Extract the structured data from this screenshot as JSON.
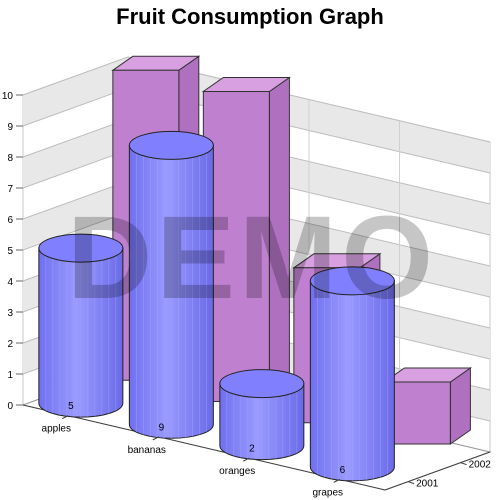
{
  "chart_data": {
    "type": "bar",
    "title": "Fruit Consumption Graph",
    "categories": [
      "apples",
      "bananas",
      "oranges",
      "grapes"
    ],
    "series": [
      {
        "name": "2001",
        "values": [
          5,
          9,
          2,
          6
        ],
        "shape": "cylinder",
        "color": "#8080ff"
      },
      {
        "name": "2002",
        "values": [
          10,
          10,
          5,
          2
        ],
        "shape": "box",
        "color": "#c080d0"
      }
    ],
    "yticks": [
      0,
      1,
      2,
      3,
      4,
      5,
      6,
      7,
      8,
      9,
      10
    ],
    "ylim": [
      0,
      10
    ],
    "xlabel": "",
    "ylabel": "",
    "grid": true,
    "legend": "none",
    "watermark": "DEMO"
  }
}
